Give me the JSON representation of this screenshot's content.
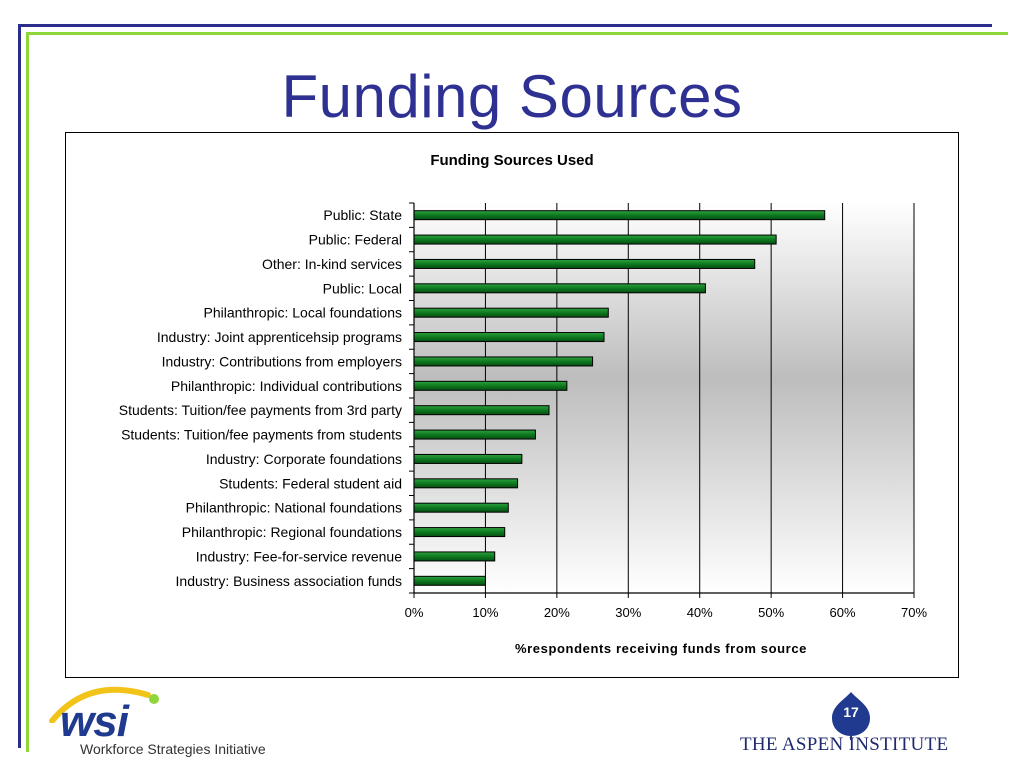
{
  "slide": {
    "title": "Funding Sources",
    "page_number": "17"
  },
  "logos": {
    "wsi_text": "wsi",
    "wsi_subtitle": "Workforce Strategies Initiative",
    "aspen_text": "THE ASPEN INSTITUTE"
  },
  "colors": {
    "title": "#2e3192",
    "bar": "#0d7a1f",
    "frame_blue": "#2b2e8c",
    "frame_green": "#8fd63b"
  },
  "chart_data": {
    "type": "bar",
    "orientation": "horizontal",
    "title": "Funding Sources Used",
    "xlabel": "%respondents receiving funds from source",
    "ylabel": "",
    "xlim": [
      0,
      70
    ],
    "x_ticks": [
      "0%",
      "10%",
      "20%",
      "30%",
      "40%",
      "50%",
      "60%",
      "70%"
    ],
    "grid": true,
    "categories": [
      "Public: State",
      "Public: Federal",
      "Other: In-kind services",
      "Public: Local",
      "Philanthropic: Local foundations",
      "Industry: Joint apprenticehsip programs",
      "Industry: Contributions from employers",
      "Philanthropic: Individual contributions",
      "Students: Tuition/fee payments from 3rd party",
      "Students: Tuition/fee payments from students",
      "Industry: Corporate foundations",
      "Students: Federal student aid",
      "Philanthropic: National foundations",
      "Philanthropic: Regional foundations",
      "Industry: Fee-for-service revenue",
      "Industry: Business association funds"
    ],
    "values": [
      57.5,
      50.7,
      47.7,
      40.8,
      27.2,
      26.6,
      25.0,
      21.4,
      18.9,
      17.0,
      15.1,
      14.5,
      13.2,
      12.7,
      11.3,
      10.0
    ]
  }
}
